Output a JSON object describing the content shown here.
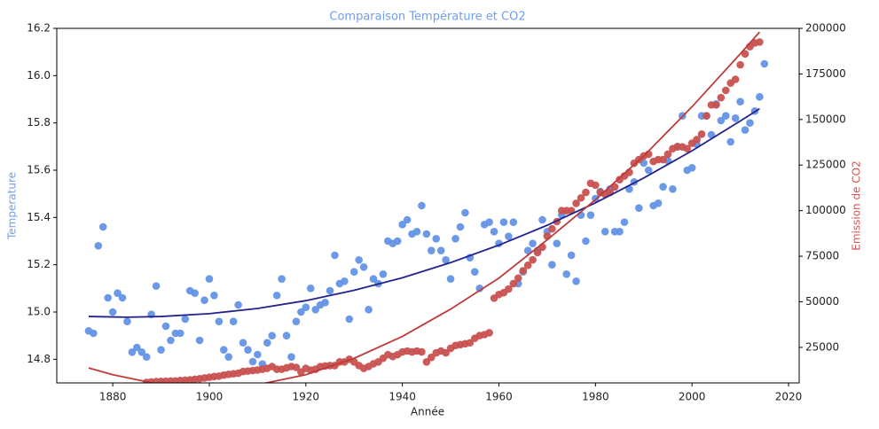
{
  "chart_data": {
    "type": "scatter",
    "title": "Comparaison Température et CO2",
    "xlabel": "Année",
    "ylabel": "Temperature",
    "y2label": "Emission de CO2",
    "title_color": "#6f9ef0",
    "ylabel_color": "#6f9ef0",
    "y2label_color": "#d9534f",
    "xlim": [
      1868.4,
      2022.2
    ],
    "ylim": [
      14.7,
      16.2
    ],
    "y2lim": [
      5500,
      200000
    ],
    "xticks": [
      1880,
      1900,
      1920,
      1940,
      1960,
      1980,
      2000,
      2020
    ],
    "yticks": [
      14.8,
      {
        "value": 15.0,
        "label": "15.0"
      },
      15.2,
      15.4,
      15.6,
      15.8,
      {
        "value": 16.0,
        "label": "16.0"
      },
      16.2
    ],
    "y2ticks": [
      25000,
      50000,
      75000,
      100000,
      125000,
      150000,
      175000,
      200000
    ],
    "series": [
      {
        "type": "scatter",
        "color": "#6493e6",
        "x": [
          1875,
          1876,
          1877,
          1878,
          1879,
          1880,
          1881,
          1882,
          1883,
          1884,
          1885,
          1886,
          1887,
          1888,
          1889,
          1890,
          1891,
          1892,
          1893,
          1894,
          1895,
          1896,
          1897,
          1898,
          1899,
          1900,
          1901,
          1902,
          1903,
          1904,
          1905,
          1906,
          1907,
          1908,
          1909,
          1910,
          1911,
          1912,
          1913,
          1914,
          1915,
          1916,
          1917,
          1918,
          1919,
          1920,
          1921,
          1922,
          1923,
          1924,
          1925,
          1926,
          1927,
          1928,
          1929,
          1930,
          1931,
          1932,
          1933,
          1934,
          1935,
          1936,
          1937,
          1938,
          1939,
          1940,
          1941,
          1942,
          1943,
          1944,
          1945,
          1946,
          1947,
          1948,
          1949,
          1950,
          1951,
          1952,
          1953,
          1954,
          1955,
          1956,
          1957,
          1958,
          1959,
          1960,
          1961,
          1962,
          1963,
          1964,
          1965,
          1966,
          1967,
          1968,
          1969,
          1970,
          1971,
          1972,
          1973,
          1974,
          1975,
          1976,
          1977,
          1978,
          1979,
          1980,
          1981,
          1982,
          1983,
          1984,
          1985,
          1986,
          1987,
          1988,
          1989,
          1990,
          1991,
          1992,
          1993,
          1994,
          1995,
          1996,
          1997,
          1998,
          1999,
          2000,
          2001,
          2002,
          2003,
          2004,
          2005,
          2006,
          2007,
          2008,
          2009,
          2010,
          2011,
          2012,
          2013,
          2014,
          2015
        ],
        "values": [
          14.92,
          14.91,
          15.28,
          15.36,
          15.06,
          15.0,
          15.08,
          15.06,
          14.96,
          14.83,
          14.85,
          14.83,
          14.81,
          14.99,
          15.11,
          14.84,
          14.94,
          14.88,
          14.91,
          14.91,
          14.97,
          15.09,
          15.08,
          14.88,
          15.05,
          15.14,
          15.07,
          14.96,
          14.84,
          14.81,
          14.96,
          15.03,
          14.87,
          14.84,
          14.79,
          14.82,
          14.78,
          14.87,
          14.9,
          15.07,
          15.14,
          14.9,
          14.81,
          14.96,
          15.0,
          15.02,
          15.1,
          15.01,
          15.03,
          15.04,
          15.09,
          15.24,
          15.12,
          15.13,
          14.97,
          15.17,
          15.22,
          15.19,
          15.01,
          15.14,
          15.12,
          15.16,
          15.3,
          15.29,
          15.3,
          15.37,
          15.39,
          15.33,
          15.34,
          15.45,
          15.33,
          15.26,
          15.31,
          15.26,
          15.22,
          15.14,
          15.31,
          15.36,
          15.42,
          15.23,
          15.17,
          15.1,
          15.37,
          15.38,
          15.34,
          15.29,
          15.38,
          15.32,
          15.38,
          15.12,
          15.17,
          15.26,
          15.29,
          15.26,
          15.39,
          15.34,
          15.2,
          15.29,
          15.41,
          15.16,
          15.24,
          15.13,
          15.41,
          15.3,
          15.41,
          15.48,
          15.51,
          15.34,
          15.52,
          15.34,
          15.34,
          15.38,
          15.52,
          15.55,
          15.44,
          15.63,
          15.6,
          15.45,
          15.46,
          15.53,
          15.64,
          15.52,
          15.7,
          15.83,
          15.6,
          15.61,
          15.71,
          15.83,
          15.83,
          15.75,
          15.88,
          15.81,
          15.83,
          15.72,
          15.82,
          15.89,
          15.77,
          15.8,
          15.85,
          15.91,
          16.05
        ]
      },
      {
        "type": "scatter",
        "axis": "y2",
        "color": "#c85150",
        "x": [
          1887,
          1888,
          1889,
          1890,
          1891,
          1892,
          1893,
          1894,
          1895,
          1896,
          1897,
          1898,
          1899,
          1900,
          1901,
          1902,
          1903,
          1904,
          1905,
          1906,
          1907,
          1908,
          1909,
          1910,
          1911,
          1912,
          1913,
          1914,
          1915,
          1916,
          1917,
          1918,
          1919,
          1920,
          1921,
          1922,
          1923,
          1924,
          1925,
          1926,
          1927,
          1928,
          1929,
          1930,
          1931,
          1932,
          1933,
          1934,
          1935,
          1936,
          1937,
          1938,
          1939,
          1940,
          1941,
          1942,
          1943,
          1944,
          1945,
          1946,
          1947,
          1948,
          1949,
          1950,
          1951,
          1952,
          1953,
          1954,
          1955,
          1956,
          1957,
          1958,
          1959,
          1960,
          1961,
          1962,
          1963,
          1964,
          1965,
          1966,
          1967,
          1968,
          1969,
          1970,
          1971,
          1972,
          1973,
          1974,
          1975,
          1976,
          1977,
          1978,
          1979,
          1980,
          1981,
          1982,
          1983,
          1984,
          1985,
          1986,
          1987,
          1988,
          1989,
          1990,
          1991,
          1992,
          1993,
          1994,
          1995,
          1996,
          1997,
          1998,
          1999,
          2000,
          2001,
          2002,
          2003,
          2004,
          2005,
          2006,
          2007,
          2008,
          2009,
          2010,
          2011,
          2012,
          2013,
          2014
        ],
        "values": [
          5800,
          6000,
          6200,
          6300,
          6400,
          6500,
          6600,
          6800,
          7000,
          7200,
          7500,
          7800,
          8200,
          8600,
          9000,
          9200,
          9800,
          10200,
          10500,
          10800,
          11800,
          12000,
          12300,
          12600,
          13000,
          13500,
          14500,
          13000,
          13000,
          13800,
          14500,
          14000,
          11500,
          13500,
          12500,
          13000,
          14500,
          14800,
          15000,
          15000,
          17000,
          17000,
          18500,
          17000,
          15000,
          13500,
          14500,
          16000,
          17000,
          19000,
          21000,
          20000,
          21000,
          22500,
          23000,
          22500,
          23000,
          22500,
          17000,
          19500,
          22000,
          23000,
          22000,
          24500,
          26000,
          26500,
          27000,
          27500,
          30000,
          31500,
          32000,
          33000,
          52000,
          54000,
          55000,
          57000,
          60000,
          63000,
          67000,
          70000,
          73000,
          77000,
          80000,
          86000,
          90000,
          94000,
          100000,
          100000,
          100000,
          104000,
          107000,
          110000,
          115000,
          114000,
          110000,
          109000,
          110000,
          113000,
          117000,
          119000,
          121000,
          126000,
          128000,
          130000,
          131000,
          127000,
          128000,
          128000,
          131000,
          134000,
          135000,
          135000,
          134000,
          137000,
          139000,
          142000,
          152000,
          158000,
          158000,
          162000,
          166000,
          170000,
          172000,
          180000,
          186000,
          190000,
          192000,
          192500
        ]
      },
      {
        "type": "line",
        "color": "#23238f",
        "x": [
          1875,
          1883,
          1890,
          1900,
          1910,
          1920,
          1930,
          1940,
          1950,
          1960,
          1970,
          1980,
          1990,
          2000,
          2010,
          2014
        ],
        "values": [
          14.981,
          14.978,
          14.981,
          14.993,
          15.015,
          15.048,
          15.092,
          15.145,
          15.209,
          15.283,
          15.367,
          15.462,
          15.567,
          15.682,
          15.808,
          15.86
        ]
      },
      {
        "type": "line",
        "axis": "y2",
        "color": "#bf3b3b",
        "x": [
          1875,
          1880,
          1890,
          1900,
          1910,
          1920,
          1930,
          1940,
          1950,
          1960,
          1970,
          1980,
          1990,
          2000,
          2010,
          2014
        ],
        "values": [
          13700,
          10000,
          4500,
          2500,
          4500,
          10000,
          19000,
          31000,
          46000,
          63000,
          84000,
          106000,
          130000,
          157000,
          186000,
          198000
        ]
      }
    ]
  }
}
